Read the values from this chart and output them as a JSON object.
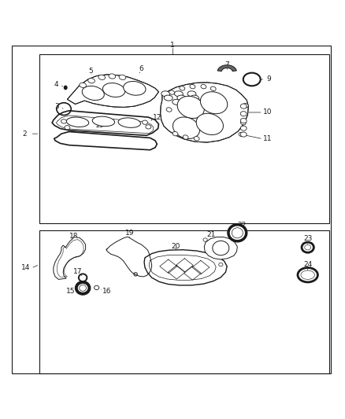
{
  "bg_color": "#ffffff",
  "lc": "#1a1a1a",
  "font_size": 6.5,
  "boxes": {
    "outer": [
      0.035,
      0.025,
      0.925,
      0.95
    ],
    "upper": [
      0.115,
      0.46,
      0.84,
      0.49
    ],
    "lower": [
      0.115,
      0.025,
      0.84,
      0.415
    ]
  },
  "label_1": [
    0.5,
    0.975
  ],
  "label_2": [
    0.075,
    0.69
  ],
  "label_14": [
    0.075,
    0.31
  ]
}
